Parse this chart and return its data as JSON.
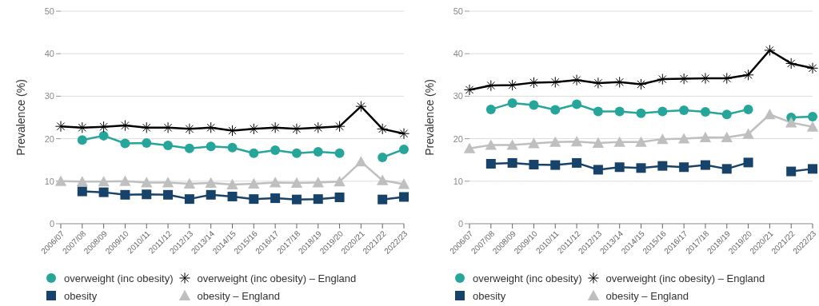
{
  "chart_data": [
    {
      "type": "line",
      "ylabel": "Prevalence (%)",
      "categories": [
        "2006/07",
        "2007/08",
        "2008/09",
        "2009/10",
        "2010/11",
        "2011/12",
        "2012/13",
        "2013/14",
        "2014/15",
        "2015/16",
        "2016/17",
        "2017/18",
        "2018/19",
        "2019/20",
        "2020/21",
        "2021/22",
        "2022/23"
      ],
      "ylim": [
        0,
        50
      ],
      "yticks": [
        0,
        10,
        20,
        30,
        40,
        50
      ],
      "grid": "y",
      "legend": "bottom",
      "series": [
        {
          "name": "overweight (inc obesity)",
          "color": "#26a69a",
          "marker": "circle",
          "values": [
            null,
            19.7,
            20.7,
            18.9,
            19.0,
            18.4,
            17.7,
            18.2,
            17.9,
            16.6,
            17.3,
            16.6,
            16.9,
            16.6,
            null,
            15.6,
            17.5
          ]
        },
        {
          "name": "overweight (inc obesity) – England",
          "color": "#000000",
          "marker": "cross",
          "values": [
            22.9,
            22.6,
            22.8,
            23.1,
            22.6,
            22.6,
            22.3,
            22.6,
            21.9,
            22.3,
            22.6,
            22.3,
            22.6,
            22.9,
            27.6,
            22.3,
            21.2
          ]
        },
        {
          "name": "obesity",
          "color": "#17436b",
          "marker": "square",
          "values": [
            null,
            7.6,
            7.4,
            6.8,
            6.9,
            6.8,
            5.8,
            6.8,
            6.4,
            5.8,
            6.0,
            5.7,
            5.8,
            6.2,
            null,
            5.7,
            6.3
          ]
        },
        {
          "name": "obesity – England",
          "color": "#bfbfbf",
          "marker": "triangle",
          "values": [
            10.0,
            9.9,
            9.9,
            10.0,
            9.7,
            9.7,
            9.4,
            9.6,
            9.2,
            9.4,
            9.7,
            9.6,
            9.7,
            9.9,
            14.6,
            10.2,
            9.3
          ]
        }
      ]
    },
    {
      "type": "line",
      "ylabel": "Prevalence (%)",
      "categories": [
        "2006/07",
        "2007/08",
        "2008/09",
        "2009/10",
        "2010/11",
        "2011/12",
        "2012/13",
        "2013/14",
        "2014/15",
        "2015/16",
        "2016/17",
        "2017/18",
        "2018/19",
        "2019/20",
        "2020/21",
        "2021/22",
        "2022/23"
      ],
      "ylim": [
        0,
        50
      ],
      "yticks": [
        0,
        10,
        20,
        30,
        40,
        50
      ],
      "grid": "y",
      "legend": "bottom",
      "series": [
        {
          "name": "overweight (inc obesity)",
          "color": "#26a69a",
          "marker": "circle",
          "values": [
            null,
            26.9,
            28.4,
            27.9,
            26.8,
            28.1,
            26.4,
            26.4,
            26.0,
            26.4,
            26.7,
            26.3,
            25.7,
            26.9,
            null,
            25.0,
            25.2
          ]
        },
        {
          "name": "overweight (inc obesity) – England",
          "color": "#000000",
          "marker": "cross",
          "values": [
            31.5,
            32.5,
            32.6,
            33.2,
            33.3,
            33.8,
            33.1,
            33.3,
            32.8,
            34.0,
            34.1,
            34.2,
            34.2,
            35.0,
            40.8,
            37.7,
            36.6
          ]
        },
        {
          "name": "obesity",
          "color": "#17436b",
          "marker": "square",
          "values": [
            null,
            14.1,
            14.3,
            13.9,
            13.8,
            14.3,
            12.7,
            13.3,
            13.1,
            13.6,
            13.3,
            13.8,
            12.9,
            14.4,
            null,
            12.3,
            12.9
          ]
        },
        {
          "name": "obesity – England",
          "color": "#bfbfbf",
          "marker": "triangle",
          "values": [
            17.7,
            18.5,
            18.5,
            18.9,
            19.2,
            19.3,
            19.0,
            19.2,
            19.2,
            19.9,
            20.0,
            20.3,
            20.3,
            21.1,
            25.7,
            23.8,
            22.8
          ]
        }
      ]
    }
  ]
}
